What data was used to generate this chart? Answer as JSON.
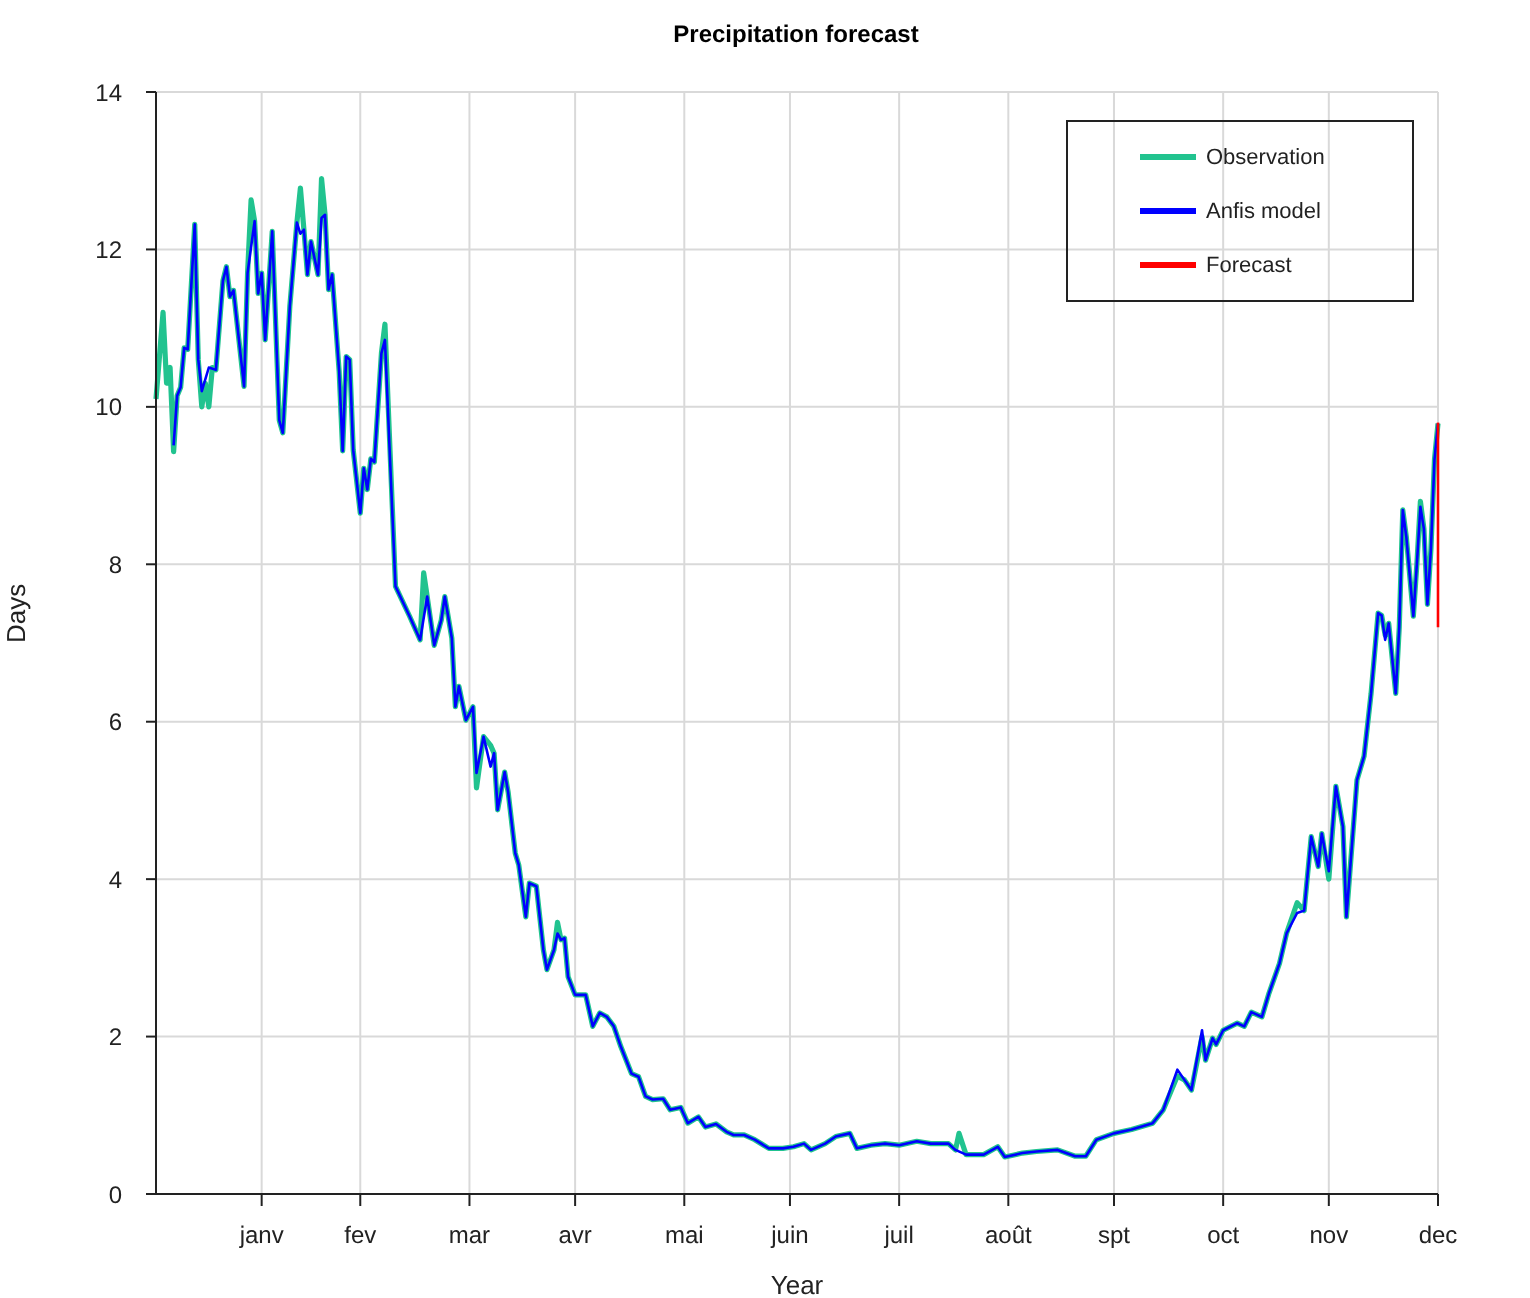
{
  "chart_data": {
    "type": "line",
    "title": "Precipitation forecast",
    "xlabel": "Year",
    "ylabel": "Days",
    "xlim": [
      "--01-01",
      "--12-31"
    ],
    "ylim": [
      0,
      14
    ],
    "xticks": [
      {
        "value": "--01-31",
        "label": "janv"
      },
      {
        "value": "--02-28",
        "label": "fev"
      },
      {
        "value": "--03-31",
        "label": "mar"
      },
      {
        "value": "--04-30",
        "label": "avr"
      },
      {
        "value": "--05-31",
        "label": "mai"
      },
      {
        "value": "--06-30",
        "label": "juin"
      },
      {
        "value": "--07-31",
        "label": "juil"
      },
      {
        "value": "--08-31",
        "label": "août"
      },
      {
        "value": "--09-30",
        "label": "spt"
      },
      {
        "value": "--10-31",
        "label": "oct"
      },
      {
        "value": "--11-30",
        "label": "nov"
      },
      {
        "value": "--12-31",
        "label": "dec"
      }
    ],
    "yticks": [
      0,
      2,
      4,
      6,
      8,
      10,
      12,
      14
    ],
    "grid": true,
    "legend": "top right",
    "series": [
      {
        "name": "Observation",
        "color": "#21c38f",
        "x": [
          "--01-01",
          "--01-03",
          "--01-04",
          "--01-05",
          "--01-06",
          "--01-07",
          "--01-08",
          "--01-09",
          "--01-10",
          "--01-12",
          "--01-13",
          "--01-14",
          "--01-15",
          "--01-16",
          "--01-17",
          "--01-18",
          "--01-20",
          "--01-21",
          "--01-22",
          "--01-23",
          "--01-26",
          "--01-27",
          "--01-28",
          "--01-29",
          "--01-30",
          "--01-31",
          "--02-01",
          "--02-03",
          "--02-05",
          "--02-06",
          "--02-08",
          "--02-10",
          "--02-11",
          "--02-12",
          "--02-13",
          "--02-14",
          "--02-16",
          "--02-17",
          "--02-18",
          "--02-19",
          "--02-20",
          "--02-22",
          "--02-23",
          "--02-24",
          "--02-25",
          "--02-26",
          "--02-28",
          "--03-01",
          "--03-02",
          "--03-03",
          "--03-04",
          "--03-06",
          "--03-07",
          "--03-10",
          "--03-14",
          "--03-17",
          "--03-18",
          "--03-19",
          "--03-21",
          "--03-23",
          "--03-24",
          "--03-26",
          "--03-27",
          "--03-28",
          "--03-30",
          "--04-01",
          "--04-02",
          "--04-04",
          "--04-06",
          "--04-07",
          "--04-08",
          "--04-10",
          "--04-11",
          "--04-13",
          "--04-14",
          "--04-16",
          "--04-17",
          "--04-19",
          "--04-21",
          "--04-22",
          "--04-24",
          "--04-25",
          "--04-26",
          "--04-27",
          "--04-28",
          "--04-30",
          "--05-01",
          "--05-03",
          "--05-05",
          "--05-07",
          "--05-09",
          "--05-11",
          "--05-13",
          "--05-16",
          "--05-18",
          "--05-20",
          "--05-22",
          "--05-25",
          "--05-27",
          "--05-30",
          "--06-01",
          "--06-04",
          "--06-06",
          "--06-09",
          "--06-12",
          "--06-14",
          "--06-17",
          "--06-20",
          "--06-24",
          "--06-28",
          "--07-01",
          "--07-04",
          "--07-06",
          "--07-10",
          "--07-13",
          "--07-17",
          "--07-19",
          "--07-23",
          "--07-27",
          "--07-31",
          "--08-05",
          "--08-09",
          "--08-14",
          "--08-16",
          "--08-17",
          "--08-19",
          "--08-24",
          "--08-28",
          "--08-30",
          "--09-04",
          "--09-08",
          "--09-14",
          "--09-19",
          "--09-22",
          "--09-25",
          "--09-30",
          "--10-05",
          "--10-11",
          "--10-14",
          "--10-18",
          "--10-20",
          "--10-22",
          "--10-25",
          "--10-26",
          "--10-28",
          "--10-29",
          "--10-31",
          "--11-04",
          "--11-06",
          "--11-08",
          "--11-11",
          "--11-13",
          "--11-16",
          "--11-18",
          "--11-21",
          "--11-23",
          "--11-25",
          "--11-27",
          "--11-28",
          "--11-30",
          "--12-02",
          "--12-04",
          "--12-05",
          "--12-08",
          "--12-10",
          "--12-12",
          "--12-14",
          "--12-15",
          "--12-16",
          "--12-17",
          "--12-19",
          "--12-20",
          "--12-21",
          "--12-22",
          "--12-24",
          "--12-25",
          "--12-26",
          "--12-27",
          "--12-28",
          "--12-29",
          "--12-30",
          "--12-31"
        ],
        "values": [
          10.1,
          11.2,
          10.3,
          10.5,
          9.43,
          10.14,
          10.25,
          10.75,
          10.73,
          12.32,
          10.6,
          10.0,
          10.3,
          10.0,
          10.5,
          10.47,
          11.6,
          11.78,
          11.4,
          11.48,
          10.26,
          11.7,
          12.63,
          12.36,
          11.44,
          11.7,
          10.85,
          12.23,
          9.83,
          9.67,
          11.28,
          12.34,
          12.78,
          12.25,
          11.68,
          12.1,
          11.68,
          12.9,
          12.44,
          11.49,
          11.68,
          10.45,
          9.44,
          10.64,
          10.6,
          9.45,
          8.65,
          9.22,
          8.95,
          9.34,
          9.3,
          10.68,
          11.05,
          7.72,
          7.34,
          7.04,
          7.89,
          7.59,
          6.97,
          7.29,
          7.59,
          7.06,
          6.19,
          6.45,
          6.02,
          6.19,
          5.16,
          5.81,
          5.7,
          5.6,
          4.88,
          5.36,
          5.1,
          4.33,
          4.18,
          3.52,
          3.95,
          3.91,
          3.1,
          2.85,
          3.1,
          3.45,
          3.23,
          3.25,
          2.76,
          2.53,
          2.53,
          2.53,
          2.13,
          2.3,
          2.25,
          2.13,
          1.87,
          1.53,
          1.49,
          1.24,
          1.2,
          1.21,
          1.07,
          1.1,
          0.9,
          0.98,
          0.85,
          0.89,
          0.79,
          0.75,
          0.75,
          0.69,
          0.58,
          0.58,
          0.6,
          0.64,
          0.56,
          0.64,
          0.73,
          0.77,
          0.58,
          0.62,
          0.64,
          0.62,
          0.67,
          0.64,
          0.64,
          0.56,
          0.77,
          0.5,
          0.5,
          0.6,
          0.47,
          0.52,
          0.54,
          0.56,
          0.48,
          0.48,
          0.69,
          0.77,
          0.82,
          0.9,
          1.07,
          1.5,
          1.45,
          1.32,
          2.0,
          1.7,
          1.98,
          1.9,
          2.08,
          2.17,
          2.13,
          2.31,
          2.25,
          2.55,
          2.93,
          3.31,
          3.7,
          3.6,
          4.54,
          4.16,
          4.58,
          4.0,
          5.18,
          4.67,
          3.52,
          5.26,
          5.56,
          6.36,
          7.38,
          7.35,
          7.1,
          7.25,
          6.36,
          7.2,
          8.69,
          8.35,
          7.34,
          8.0,
          8.8,
          8.45,
          7.49,
          8.2,
          9.33,
          9.79
        ]
      },
      {
        "name": "Anfis model",
        "color": "#0000ff",
        "x": [
          "--01-06",
          "--01-07",
          "--01-08",
          "--01-09",
          "--01-10",
          "--01-12",
          "--01-13",
          "--01-14",
          "--01-16",
          "--01-18",
          "--01-20",
          "--01-21",
          "--01-22",
          "--01-23",
          "--01-26",
          "--01-27",
          "--01-29",
          "--01-30",
          "--01-31",
          "--02-01",
          "--02-03",
          "--02-05",
          "--02-06",
          "--02-08",
          "--02-10",
          "--02-11",
          "--02-12",
          "--02-13",
          "--02-14",
          "--02-16",
          "--02-17",
          "--02-18",
          "--02-19",
          "--02-20",
          "--02-22",
          "--02-23",
          "--02-24",
          "--02-25",
          "--02-26",
          "--02-28",
          "--03-01",
          "--03-02",
          "--03-03",
          "--03-04",
          "--03-06",
          "--03-07",
          "--03-10",
          "--03-14",
          "--03-17",
          "--03-19",
          "--03-21",
          "--03-23",
          "--03-24",
          "--03-26",
          "--03-27",
          "--03-28",
          "--03-30",
          "--04-01",
          "--04-02",
          "--04-04",
          "--04-06",
          "--04-07",
          "--04-08",
          "--04-10",
          "--04-11",
          "--04-13",
          "--04-14",
          "--04-16",
          "--04-17",
          "--04-19",
          "--04-21",
          "--04-22",
          "--04-24",
          "--04-25",
          "--04-26",
          "--04-27",
          "--04-28",
          "--04-30",
          "--05-01",
          "--05-03",
          "--05-05",
          "--05-07",
          "--05-09",
          "--05-11",
          "--05-13",
          "--05-16",
          "--05-18",
          "--05-20",
          "--05-22",
          "--05-25",
          "--05-27",
          "--05-30",
          "--06-01",
          "--06-04",
          "--06-06",
          "--06-09",
          "--06-12",
          "--06-14",
          "--06-17",
          "--06-20",
          "--06-24",
          "--06-28",
          "--07-01",
          "--07-04",
          "--07-06",
          "--07-10",
          "--07-13",
          "--07-17",
          "--07-19",
          "--07-23",
          "--07-27",
          "--07-31",
          "--08-05",
          "--08-09",
          "--08-14",
          "--08-16",
          "--08-19",
          "--08-24",
          "--08-28",
          "--08-30",
          "--09-04",
          "--09-08",
          "--09-14",
          "--09-19",
          "--09-22",
          "--09-25",
          "--09-30",
          "--10-05",
          "--10-11",
          "--10-14",
          "--10-18",
          "--10-20",
          "--10-22",
          "--10-25",
          "--10-26",
          "--10-28",
          "--10-29",
          "--10-31",
          "--11-04",
          "--11-06",
          "--11-08",
          "--11-11",
          "--11-13",
          "--11-16",
          "--11-18",
          "--11-21",
          "--11-23",
          "--11-25",
          "--11-27",
          "--11-28",
          "--11-30",
          "--12-02",
          "--12-04",
          "--12-05",
          "--12-08",
          "--12-10",
          "--12-12",
          "--12-14",
          "--12-15",
          "--12-16",
          "--12-17",
          "--12-19",
          "--12-20",
          "--12-21",
          "--12-22",
          "--12-24",
          "--12-25",
          "--12-26",
          "--12-27",
          "--12-28",
          "--12-29",
          "--12-30",
          "--12-31"
        ],
        "values": [
          9.51,
          10.14,
          10.25,
          10.75,
          10.73,
          12.32,
          10.6,
          10.2,
          10.5,
          10.47,
          11.6,
          11.78,
          11.4,
          11.48,
          10.26,
          11.7,
          12.36,
          11.44,
          11.7,
          10.85,
          12.23,
          9.83,
          9.67,
          11.28,
          12.34,
          12.2,
          12.25,
          11.68,
          12.1,
          11.68,
          12.4,
          12.44,
          11.49,
          11.68,
          10.45,
          9.44,
          10.64,
          10.6,
          9.45,
          8.65,
          9.22,
          8.95,
          9.34,
          9.3,
          10.68,
          10.85,
          7.72,
          7.34,
          7.04,
          7.59,
          6.97,
          7.29,
          7.59,
          7.06,
          6.19,
          6.45,
          6.02,
          6.19,
          5.35,
          5.81,
          5.43,
          5.6,
          4.88,
          5.36,
          5.1,
          4.33,
          4.18,
          3.52,
          3.95,
          3.91,
          3.1,
          2.85,
          3.1,
          3.31,
          3.23,
          3.25,
          2.76,
          2.53,
          2.53,
          2.53,
          2.13,
          2.3,
          2.25,
          2.13,
          1.87,
          1.53,
          1.49,
          1.24,
          1.2,
          1.21,
          1.07,
          1.1,
          0.9,
          0.98,
          0.85,
          0.89,
          0.79,
          0.75,
          0.75,
          0.69,
          0.58,
          0.58,
          0.6,
          0.64,
          0.56,
          0.64,
          0.73,
          0.77,
          0.58,
          0.62,
          0.64,
          0.62,
          0.67,
          0.64,
          0.64,
          0.56,
          0.5,
          0.5,
          0.6,
          0.47,
          0.52,
          0.54,
          0.56,
          0.48,
          0.48,
          0.69,
          0.77,
          0.82,
          0.9,
          1.07,
          1.58,
          1.45,
          1.32,
          2.08,
          1.7,
          1.98,
          1.9,
          2.08,
          2.17,
          2.13,
          2.31,
          2.25,
          2.55,
          2.93,
          3.31,
          3.57,
          3.6,
          4.54,
          4.16,
          4.58,
          4.1,
          5.18,
          4.67,
          3.52,
          5.26,
          5.56,
          6.36,
          7.38,
          7.35,
          7.04,
          7.25,
          6.36,
          7.2,
          8.69,
          8.35,
          7.34,
          8.0,
          8.73,
          8.45,
          7.49,
          8.2,
          9.33,
          9.79
        ]
      },
      {
        "name": "Forecast",
        "color": "#ff0000",
        "x": [
          "--12-31",
          "--12-31"
        ],
        "values": [
          9.8,
          7.2
        ]
      }
    ]
  }
}
